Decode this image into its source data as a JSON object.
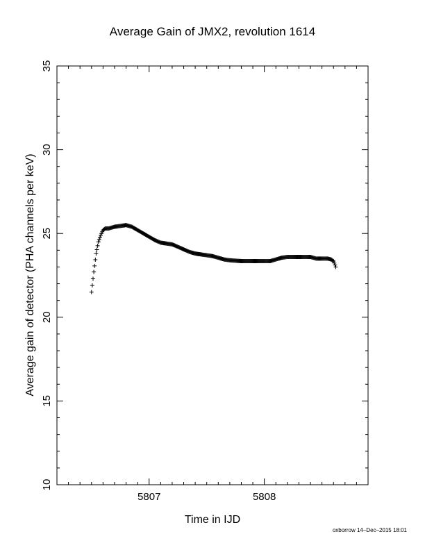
{
  "chart_data": {
    "type": "scatter",
    "title": "Average Gain of JMX2, revolution 1614",
    "xlabel": "Time in IJD",
    "ylabel": "Average gain of detector (PHA channels per keV)",
    "xlim": [
      5806.2,
      5808.9
    ],
    "ylim": [
      10,
      35
    ],
    "x_ticks": [
      5807,
      5808
    ],
    "y_ticks": [
      10,
      15,
      20,
      25,
      30,
      35
    ],
    "grid": false,
    "marker": "+",
    "curve": {
      "x": [
        5806.5,
        5806.52,
        5806.54,
        5806.56,
        5806.58,
        5806.6,
        5806.62,
        5806.65,
        5806.7,
        5806.75,
        5806.8,
        5806.85,
        5806.9,
        5806.95,
        5807.0,
        5807.05,
        5807.1,
        5807.15,
        5807.2,
        5807.25,
        5807.3,
        5807.35,
        5807.4,
        5807.5,
        5807.55,
        5807.6,
        5807.65,
        5807.7,
        5807.8,
        5807.9,
        5808.0,
        5808.05,
        5808.1,
        5808.15,
        5808.2,
        5808.3,
        5808.35,
        5808.4,
        5808.45,
        5808.5,
        5808.55,
        5808.58,
        5808.6,
        5808.62
      ],
      "y": [
        21.5,
        22.7,
        23.8,
        24.5,
        24.9,
        25.2,
        25.3,
        25.3,
        25.4,
        25.45,
        25.5,
        25.4,
        25.2,
        25.0,
        24.8,
        24.6,
        24.45,
        24.4,
        24.35,
        24.2,
        24.05,
        23.9,
        23.8,
        23.7,
        23.65,
        23.55,
        23.45,
        23.4,
        23.35,
        23.35,
        23.35,
        23.35,
        23.45,
        23.55,
        23.6,
        23.6,
        23.6,
        23.6,
        23.5,
        23.5,
        23.5,
        23.45,
        23.35,
        23.0
      ]
    }
  },
  "footer": {
    "credit": "oxborrow 14–Dec–2015 18:01"
  },
  "colors": {
    "marker": "#000000",
    "axes": "#000000",
    "background": "#ffffff"
  }
}
